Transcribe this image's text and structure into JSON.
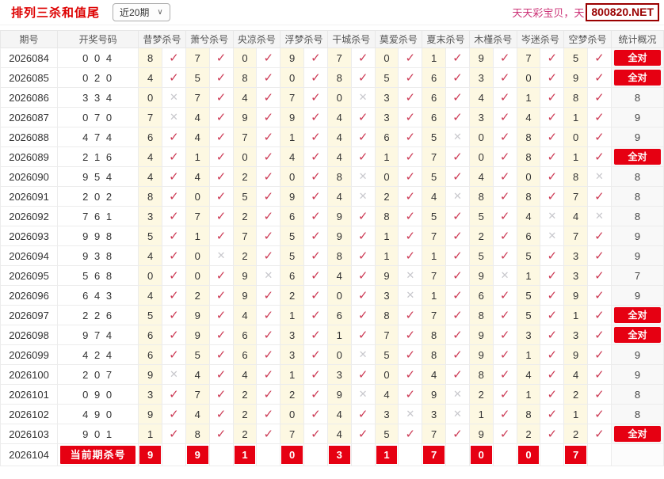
{
  "title": "排列三杀和值尾",
  "period_filter": {
    "value": "近20期"
  },
  "watermark": {
    "text": "天天彩宝贝，天",
    "badge": "800820.NET"
  },
  "icons": {
    "check": "✓",
    "cross": "✕",
    "chevron_down": "∨"
  },
  "colors": {
    "accent": "#e60012",
    "titlered": "#dd0000",
    "check": "#cc3a55",
    "cross": "#c8c8cd",
    "cellyellow": "#fdf8e2",
    "wmpink": "#cc3377",
    "badgered": "#9a0000",
    "headerbg": "#f5f5f5",
    "borderc": "#ececec"
  },
  "table": {
    "headers": [
      "期号",
      "开奖号码",
      "昔梦杀号",
      "萧兮杀号",
      "央凉杀号",
      "浮梦杀号",
      "干城杀号",
      "莫爱杀号",
      "夏末杀号",
      "木槿杀号",
      "岑迷杀号",
      "空梦杀号",
      "统计概况"
    ],
    "all_correct_label": "全对",
    "rows": [
      {
        "period": "2026084",
        "numbers": "0 0 4",
        "kills": [
          8,
          7,
          0,
          9,
          7,
          0,
          1,
          9,
          7,
          5
        ],
        "marks": "cccccccccc",
        "stat": "全对"
      },
      {
        "period": "2026085",
        "numbers": "0 2 0",
        "kills": [
          4,
          5,
          8,
          0,
          8,
          5,
          6,
          3,
          0,
          9
        ],
        "marks": "cccccccccc",
        "stat": "全对"
      },
      {
        "period": "2026086",
        "numbers": "3 3 4",
        "kills": [
          0,
          7,
          4,
          7,
          0,
          3,
          6,
          4,
          1,
          8
        ],
        "marks": "xcccxccccc",
        "stat": "8"
      },
      {
        "period": "2026087",
        "numbers": "0 7 0",
        "kills": [
          7,
          4,
          9,
          9,
          4,
          3,
          6,
          3,
          4,
          1
        ],
        "marks": "xccccccccc",
        "stat": "9"
      },
      {
        "period": "2026088",
        "numbers": "4 7 4",
        "kills": [
          6,
          4,
          7,
          1,
          4,
          6,
          5,
          0,
          8,
          0
        ],
        "marks": "ccccccxccc",
        "stat": "9"
      },
      {
        "period": "2026089",
        "numbers": "2 1 6",
        "kills": [
          4,
          1,
          0,
          4,
          4,
          1,
          7,
          0,
          8,
          1
        ],
        "marks": "cccccccccc",
        "stat": "全对"
      },
      {
        "period": "2026090",
        "numbers": "9 5 4",
        "kills": [
          4,
          4,
          2,
          0,
          8,
          0,
          5,
          4,
          0,
          8
        ],
        "marks": "ccccxccccx",
        "stat": "8"
      },
      {
        "period": "2026091",
        "numbers": "2 0 2",
        "kills": [
          8,
          0,
          5,
          9,
          4,
          2,
          4,
          8,
          8,
          7
        ],
        "marks": "ccccxcxccc",
        "stat": "8"
      },
      {
        "period": "2026092",
        "numbers": "7 6 1",
        "kills": [
          3,
          7,
          2,
          6,
          9,
          8,
          5,
          5,
          4,
          4
        ],
        "marks": "ccccccccxx",
        "stat": "8"
      },
      {
        "period": "2026093",
        "numbers": "9 9 8",
        "kills": [
          5,
          1,
          7,
          5,
          9,
          1,
          7,
          2,
          6,
          7
        ],
        "marks": "ccccccccxc",
        "stat": "9"
      },
      {
        "period": "2026094",
        "numbers": "9 3 8",
        "kills": [
          4,
          0,
          2,
          5,
          8,
          1,
          1,
          5,
          5,
          3
        ],
        "marks": "cxcccccccc",
        "stat": "9"
      },
      {
        "period": "2026095",
        "numbers": "5 6 8",
        "kills": [
          0,
          0,
          9,
          6,
          4,
          9,
          7,
          9,
          1,
          3
        ],
        "marks": "ccxccxcxcc",
        "stat": "7"
      },
      {
        "period": "2026096",
        "numbers": "6 4 3",
        "kills": [
          4,
          2,
          9,
          2,
          0,
          3,
          1,
          6,
          5,
          9
        ],
        "marks": "cccccxcccc",
        "stat": "9"
      },
      {
        "period": "2026097",
        "numbers": "2 2 6",
        "kills": [
          5,
          9,
          4,
          1,
          6,
          8,
          7,
          8,
          5,
          1
        ],
        "marks": "cccccccccc",
        "stat": "全对"
      },
      {
        "period": "2026098",
        "numbers": "9 7 4",
        "kills": [
          6,
          9,
          6,
          3,
          1,
          7,
          8,
          9,
          3,
          3
        ],
        "marks": "cccccccccc",
        "stat": "全对"
      },
      {
        "period": "2026099",
        "numbers": "4 2 4",
        "kills": [
          6,
          5,
          6,
          3,
          0,
          5,
          8,
          9,
          1,
          9
        ],
        "marks": "ccccxccccc",
        "stat": "9"
      },
      {
        "period": "2026100",
        "numbers": "2 0 7",
        "kills": [
          9,
          4,
          4,
          1,
          3,
          0,
          4,
          8,
          4,
          4
        ],
        "marks": "xccccccccc",
        "stat": "9"
      },
      {
        "period": "2026101",
        "numbers": "0 9 0",
        "kills": [
          3,
          7,
          2,
          2,
          9,
          4,
          9,
          2,
          1,
          2
        ],
        "marks": "ccccxcxccc",
        "stat": "8"
      },
      {
        "period": "2026102",
        "numbers": "4 9 0",
        "kills": [
          9,
          4,
          2,
          0,
          4,
          3,
          3,
          1,
          8,
          1
        ],
        "marks": "cccccxxccc",
        "stat": "8"
      },
      {
        "period": "2026103",
        "numbers": "9 0 1",
        "kills": [
          1,
          8,
          2,
          7,
          4,
          5,
          7,
          9,
          2,
          2
        ],
        "marks": "cccccccccc",
        "stat": "全对"
      }
    ],
    "current_row": {
      "period": "2026104",
      "label": "当前期杀号",
      "kills": [
        9,
        9,
        1,
        0,
        3,
        1,
        7,
        0,
        0,
        7
      ]
    }
  }
}
